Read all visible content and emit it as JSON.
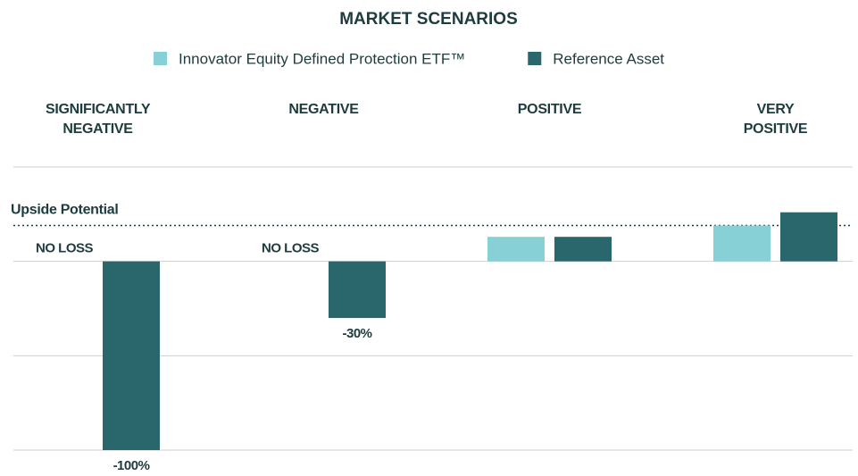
{
  "chart_data": {
    "type": "bar",
    "title": "MARKET SCENARIOS",
    "categories": [
      "SIGNIFICANTLY NEGATIVE",
      "NEGATIVE",
      "POSITIVE",
      "VERY POSITIVE"
    ],
    "series": [
      {
        "name": "Innovator Equity Defined Protection ETF™",
        "color": "#86d0d6",
        "values": [
          0,
          0,
          13,
          19
        ],
        "value_labels": [
          "NO LOSS",
          "NO LOSS",
          null,
          null
        ]
      },
      {
        "name": "Reference Asset",
        "color": "#2a676c",
        "values": [
          -100,
          -30,
          13,
          26
        ],
        "value_labels": [
          "-100%",
          "-30%",
          null,
          null
        ]
      }
    ],
    "ylim": [
      -100,
      50
    ],
    "yticks": [
      -100,
      -50,
      0,
      50
    ],
    "grid": true,
    "annotations": [
      {
        "label": "Upside Potential",
        "value": 19
      }
    ]
  }
}
